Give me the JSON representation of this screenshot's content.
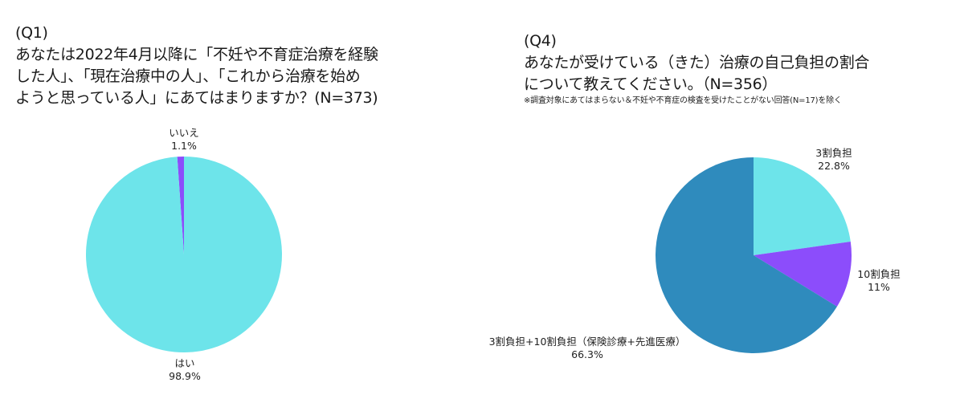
{
  "chart_data": [
    {
      "type": "pie",
      "id": "q1",
      "title": "(Q1) あなたは2022年4月以降に「不妊や不育症治療を経験した人」、「現在治療中の人」、「これから治療を始めようと思っている人」にあてはまりますか？(N=373)",
      "question_number": "(Q1)",
      "sample_size": 373,
      "categories": [
        "はい",
        "いいえ"
      ],
      "values": [
        98.9,
        1.1
      ],
      "unit": "%",
      "colors": [
        "#6de4ea",
        "#8c4dfb"
      ],
      "start_angle_deg": 0,
      "direction": "counterclockwise-from-top for いいえ",
      "legend": "none (direct labels)"
    },
    {
      "type": "pie",
      "id": "q4",
      "title": "(Q4) あなたが受けている（きた）治療の自己負担の割合について教えてください。（N=356）",
      "subtitle": "※調査対象にあてはまらない＆不妊や不育症の検査を受けたことがない回答(N=17)を除く",
      "question_number": "(Q4)",
      "sample_size": 356,
      "categories": [
        "3割負担",
        "10割負担",
        "3割負担+10割負担（保険診療+先進医療）"
      ],
      "values": [
        22.8,
        11,
        66.3
      ],
      "unit": "%",
      "colors": [
        "#6de4ea",
        "#8c4dfb",
        "#2f8bbd"
      ],
      "start_angle_deg": 0,
      "direction": "clockwise",
      "legend": "none (direct labels)"
    }
  ],
  "q1": {
    "title_lines": [
      "(Q1)",
      "あなたは2022年4月以降に「不妊や不育症治療を経験",
      "した人」、「現在治療中の人」、「これから治療を始め",
      "ようと思っている人」にあてはまりますか？(N=373)"
    ],
    "labels": [
      {
        "name": "いいえ",
        "value": "1.1%"
      },
      {
        "name": "はい",
        "value": "98.9%"
      }
    ]
  },
  "q4": {
    "title_lines": [
      "(Q4)",
      "あなたが受けている（きた）治療の自己負担の割合",
      "について教えてください。（N=356）"
    ],
    "note": "※調査対象にあてはまらない＆不妊や不育症の検査を受けたことがない回答(N=17)を除く",
    "labels": [
      {
        "name": "3割負担",
        "value": "22.8%"
      },
      {
        "name": "10割負担",
        "value": "11%"
      },
      {
        "name": "3割負担+10割負担（保険診療+先進医療）",
        "value": "66.3%"
      }
    ]
  }
}
